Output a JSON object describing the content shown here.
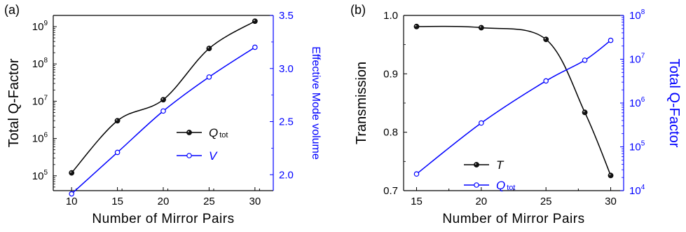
{
  "chart_data": [
    {
      "panel_label": "(a)",
      "type": "line",
      "xlabel": "Number of Mirror Pairs",
      "ylabel": "Total Q-Factor",
      "y2label": "Effective Mode volume",
      "xlim": [
        8,
        32
      ],
      "ylim": [
        40000,
        2000000000
      ],
      "yscale": "log",
      "y2lim": [
        1.85,
        3.5
      ],
      "xticks": [
        10,
        15,
        20,
        25,
        30
      ],
      "x": [
        10,
        15,
        20,
        25,
        30
      ],
      "y2ticks": [
        "2.0",
        "2.5",
        "3.0",
        "3.5"
      ],
      "series": [
        {
          "name": "Q",
          "name_sub": "tot",
          "axis": "left",
          "color": "#000000",
          "marker": "filled-circle",
          "values": [
            120000,
            3000000,
            11000000,
            260000000,
            1400000000
          ]
        },
        {
          "name": "V",
          "axis": "right",
          "color": "#0000ff",
          "marker": "open-circle",
          "values": [
            1.82,
            2.21,
            2.6,
            2.92,
            3.2
          ]
        }
      ],
      "legend_position": "center-right",
      "grid": false
    },
    {
      "panel_label": "(b)",
      "type": "line",
      "xlabel": "Number of Mirror Pairs",
      "ylabel": "Transmission",
      "y2label": "Total Q-Factor",
      "xlim": [
        14,
        31
      ],
      "ylim": [
        0.7,
        1.0
      ],
      "yticks": [
        "0.7",
        "0.8",
        "0.9",
        "1.0"
      ],
      "y2lim": [
        10000,
        100000000
      ],
      "y2scale": "log",
      "xticks": [
        15,
        20,
        25,
        30
      ],
      "series": [
        {
          "name": "T",
          "axis": "left",
          "color": "#000000",
          "marker": "filled-circle",
          "x": [
            15,
            20,
            25,
            28,
            30
          ],
          "values": [
            0.981,
            0.979,
            0.959,
            0.834,
            0.726
          ]
        },
        {
          "name": "Q",
          "name_sub": "tot",
          "axis": "right",
          "color": "#0000ff",
          "marker": "open-circle",
          "x": [
            15,
            20,
            25,
            28,
            30
          ],
          "values": [
            24000,
            350000,
            3200000,
            9500000,
            27000000
          ]
        }
      ],
      "legend_position": "bottom-center",
      "grid": false
    }
  ]
}
